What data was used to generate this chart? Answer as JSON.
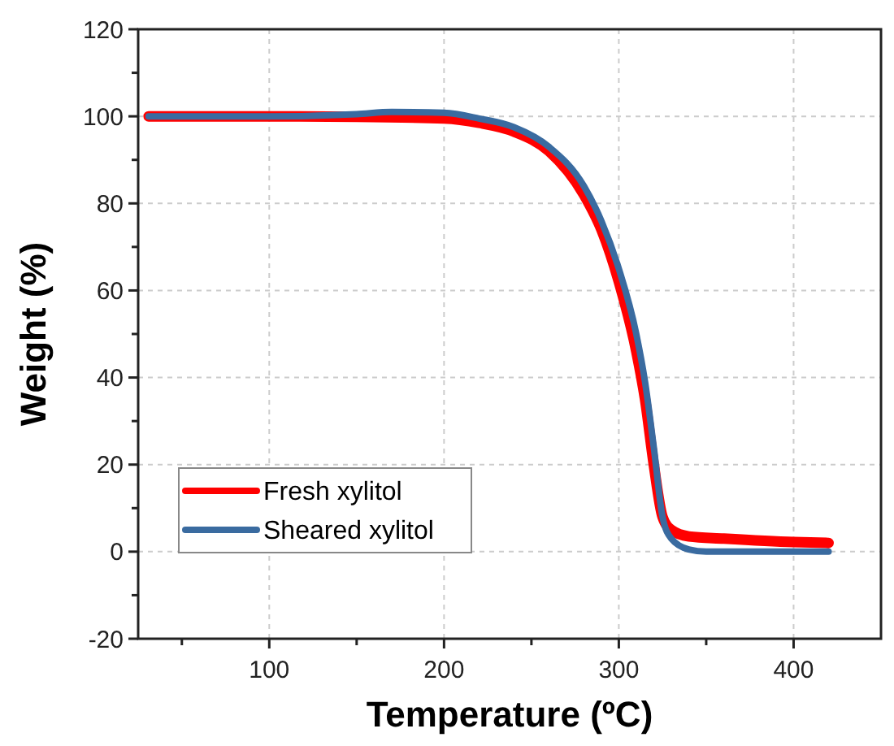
{
  "chart_data": {
    "type": "line",
    "xlabel": "Temperature (ºC)",
    "ylabel": "Weight (%)",
    "xlim": [
      25,
      450
    ],
    "ylim": [
      -20,
      120
    ],
    "xticks": [
      {
        "value": 50,
        "label": null
      },
      100,
      {
        "value": 150,
        "label": null
      },
      200,
      {
        "value": 250,
        "label": null
      },
      300,
      {
        "value": 350,
        "label": null
      },
      400
    ],
    "yticks": [
      -20,
      {
        "value": -10,
        "label": null
      },
      0,
      {
        "value": 10,
        "label": null
      },
      20,
      {
        "value": 30,
        "label": null
      },
      40,
      {
        "value": 50,
        "label": null
      },
      60,
      {
        "value": 70,
        "label": null
      },
      80,
      {
        "value": 90,
        "label": null
      },
      100,
      {
        "value": 110,
        "label": null
      },
      120
    ],
    "grid": true,
    "legend": "bottom left",
    "line_style": "solid",
    "series": [
      {
        "name": "Fresh xylitol",
        "color": "#ff0000",
        "x": [
          31,
          100,
          150,
          200,
          220,
          240,
          260,
          280,
          290,
          300,
          310,
          315,
          320,
          325,
          330,
          340,
          360,
          400,
          420
        ],
        "values": [
          100,
          100,
          99.9,
          99.5,
          98.5,
          96.5,
          92,
          82,
          74,
          62,
          46,
          35,
          20,
          8,
          5,
          3.5,
          3,
          2.2,
          2
        ]
      },
      {
        "name": "Sheared xylitol",
        "color": "#3a6ba0",
        "x": [
          31,
          100,
          150,
          170,
          200,
          220,
          240,
          260,
          280,
          290,
          300,
          310,
          315,
          320,
          325,
          330,
          340,
          350,
          420
        ],
        "values": [
          100,
          100,
          100.5,
          101,
          100.8,
          99.5,
          97.5,
          93,
          84,
          76,
          65,
          50,
          39,
          24,
          8,
          3,
          0.5,
          0,
          0
        ]
      }
    ]
  }
}
